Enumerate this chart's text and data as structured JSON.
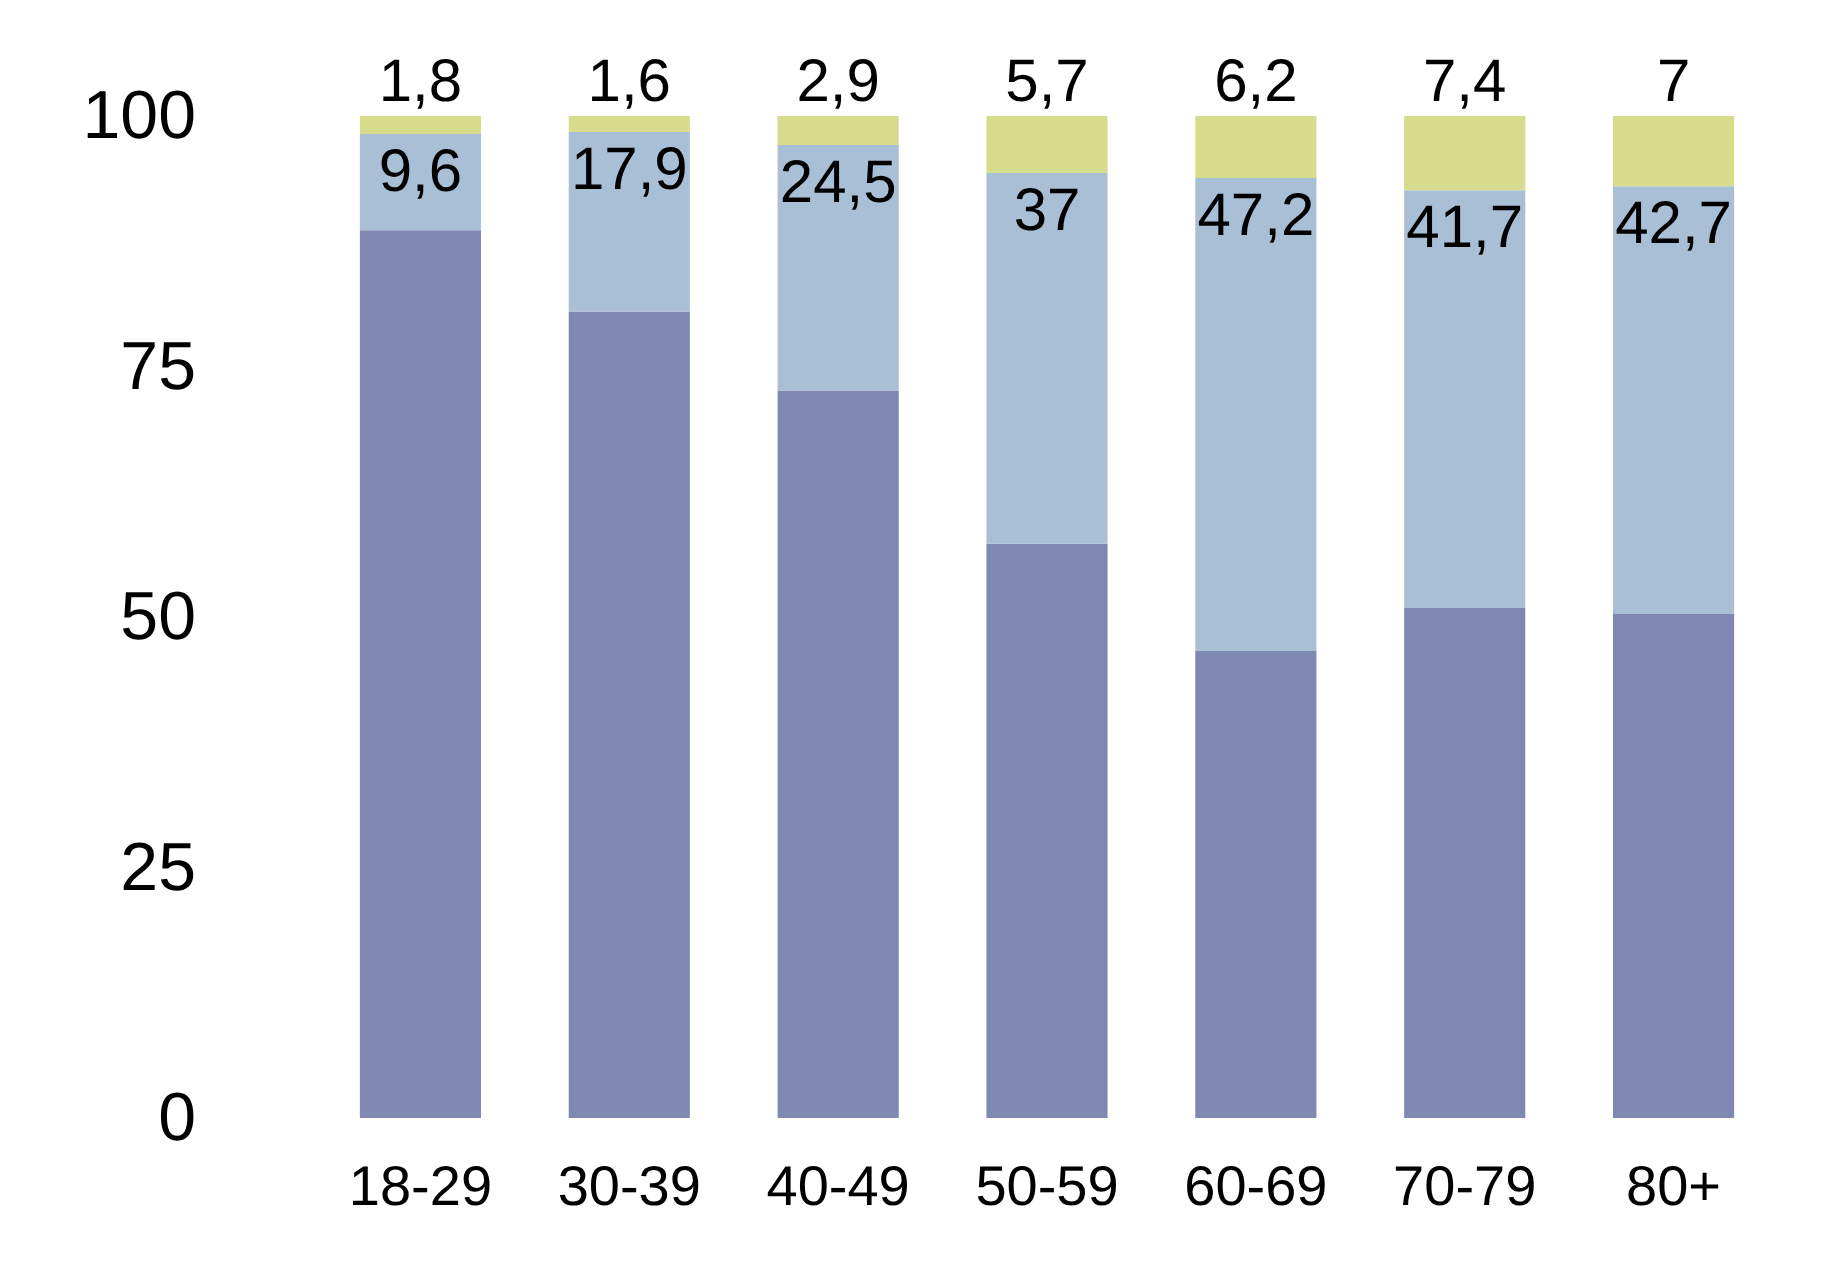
{
  "chart_data": {
    "type": "bar",
    "stacked": true,
    "categories": [
      "18-29",
      "30-39",
      "40-49",
      "50-59",
      "60-69",
      "70-79",
      "80+"
    ],
    "series": [
      {
        "color": "#7f88b0",
        "values": [
          88.6,
          80.5,
          72.6,
          57.3,
          46.6,
          50.9,
          50.3
        ]
      },
      {
        "color": "#a9bfd6",
        "values": [
          9.6,
          17.9,
          24.5,
          37,
          47.2,
          41.7,
          42.7
        ],
        "value_labels": [
          "9,6",
          "17,9",
          "24,5",
          "37",
          "47,2",
          "41,7",
          "42,7"
        ]
      },
      {
        "color": "#d6dc8c",
        "values": [
          1.8,
          1.6,
          2.9,
          5.7,
          6.2,
          7.4,
          7
        ],
        "value_labels": [
          "1,8",
          "1,6",
          "2,9",
          "5,7",
          "6,2",
          "7,4",
          "7"
        ]
      }
    ],
    "ylim": [
      0,
      100
    ],
    "yticks": [
      0,
      25,
      50,
      75,
      100
    ],
    "grid": false
  }
}
